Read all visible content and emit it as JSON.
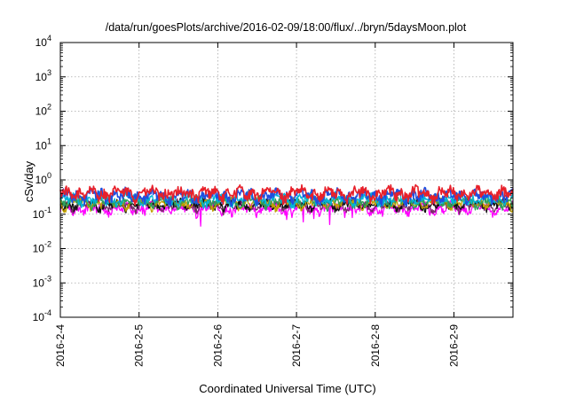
{
  "chart_data": {
    "type": "line",
    "title": "/data/run/goesPlots/archive/2016-02-09/18:00/flux/../bryn/5daysMoon.plot",
    "xlabel": "Coordinated Universal Time (UTC)",
    "ylabel": "cSv/day",
    "y_scale": "log",
    "ylim": [
      0.0001,
      10000
    ],
    "y_ticks": [
      {
        "value": 0.0001,
        "base": "10",
        "exp": "-4"
      },
      {
        "value": 0.001,
        "base": "10",
        "exp": "-3"
      },
      {
        "value": 0.01,
        "base": "10",
        "exp": "-2"
      },
      {
        "value": 0.1,
        "base": "10",
        "exp": "-1"
      },
      {
        "value": 1,
        "base": "10",
        "exp": "0"
      },
      {
        "value": 10,
        "base": "10",
        "exp": "1"
      },
      {
        "value": 100,
        "base": "10",
        "exp": "2"
      },
      {
        "value": 1000,
        "base": "10",
        "exp": "3"
      },
      {
        "value": 10000,
        "base": "10",
        "exp": "4"
      }
    ],
    "xlim": [
      "2016-02-04T00:00",
      "2016-02-09T18:00"
    ],
    "x_ticks": [
      "2016-2-4",
      "2016-2-5",
      "2016-2-6",
      "2016-2-7",
      "2016-2-8",
      "2016-2-9"
    ],
    "grid": true,
    "series": [
      {
        "color": "#e8202a",
        "baseline": 0.42,
        "jitter": 0.14,
        "dips": []
      },
      {
        "color": "#1f4fe0",
        "baseline": 0.36,
        "jitter": 0.12,
        "dips": []
      },
      {
        "color": "#00b4d8",
        "baseline": 0.28,
        "jitter": 0.08,
        "dips": []
      },
      {
        "color": "#2f9e5a",
        "baseline": 0.24,
        "jitter": 0.06,
        "dips": []
      },
      {
        "color": "#c0a000",
        "baseline": 0.22,
        "jitter": 0.05,
        "dips": []
      },
      {
        "color": "#111111",
        "baseline": 0.2,
        "jitter": 0.05,
        "dips": []
      },
      {
        "color": "#7a2a6a",
        "baseline": 0.18,
        "jitter": 0.04,
        "dips": []
      },
      {
        "color": "#ff00ff",
        "baseline": 0.15,
        "jitter": 0.04,
        "dips": [
          {
            "x": "2016-02-05T18:45",
            "y": 0.045
          },
          {
            "x": "2016-02-06T21:05",
            "y": 0.07
          },
          {
            "x": "2016-02-06T22:30",
            "y": 0.08
          },
          {
            "x": "2016-02-07T02:00",
            "y": 0.06
          },
          {
            "x": "2016-02-07T05:20",
            "y": 0.075
          },
          {
            "x": "2016-02-07T10:10",
            "y": 0.05
          },
          {
            "x": "2016-02-07T17:00",
            "y": 0.08
          }
        ]
      }
    ]
  }
}
